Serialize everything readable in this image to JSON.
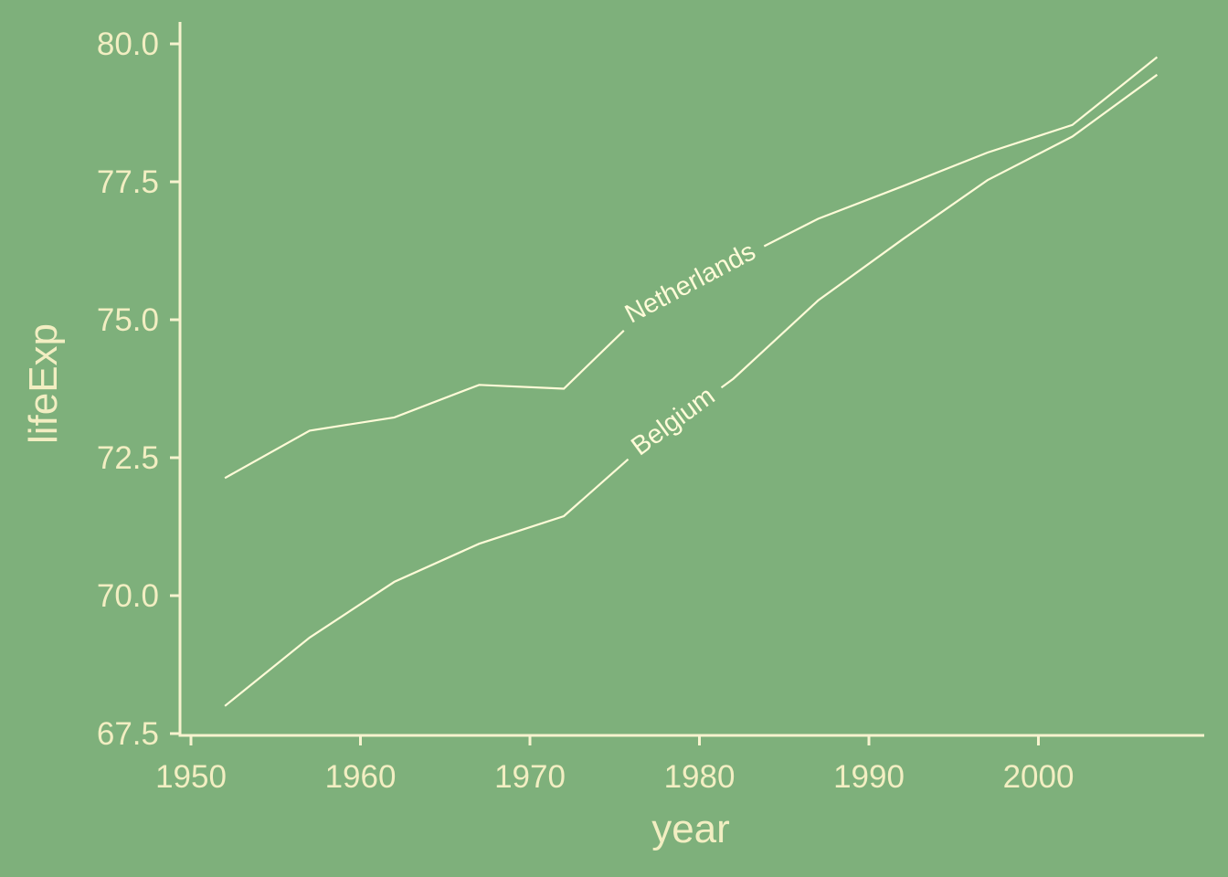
{
  "chart_data": {
    "type": "line",
    "title": "",
    "xlabel": "year",
    "ylabel": "lifeExp",
    "xlim": [
      1949,
      2010
    ],
    "ylim": [
      67.5,
      80.4
    ],
    "x_ticks": [
      1950,
      1960,
      1970,
      1980,
      1990,
      2000
    ],
    "x_tick_labels": [
      "1950",
      "1960",
      "1970",
      "1980",
      "1990",
      "2000"
    ],
    "y_ticks": [
      67.5,
      70.0,
      72.5,
      75.0,
      77.5,
      80.0
    ],
    "y_tick_labels": [
      "67.5",
      "70.0",
      "72.5",
      "75.0",
      "77.5",
      "80.0"
    ],
    "grid": false,
    "series": [
      {
        "name": "Netherlands",
        "x": [
          1952,
          1957,
          1962,
          1967,
          1972,
          1977,
          1982,
          1987,
          1992,
          1997,
          2002,
          2007
        ],
        "values": [
          72.13,
          72.99,
          73.23,
          73.82,
          73.75,
          75.24,
          76.05,
          76.83,
          77.42,
          78.03,
          78.53,
          79.76
        ],
        "label_at_x": 1979.5
      },
      {
        "name": "Belgium",
        "x": [
          1952,
          1957,
          1962,
          1967,
          1972,
          1977,
          1982,
          1987,
          1992,
          1997,
          2002,
          2007
        ],
        "values": [
          68.0,
          69.24,
          70.25,
          70.94,
          71.44,
          72.8,
          73.93,
          75.35,
          76.46,
          77.53,
          78.32,
          79.44
        ],
        "label_at_x": 1978.5
      }
    ],
    "colors": {
      "background": "#7eb07b",
      "line": "#fffbd8",
      "text": "#f2eec2"
    }
  }
}
